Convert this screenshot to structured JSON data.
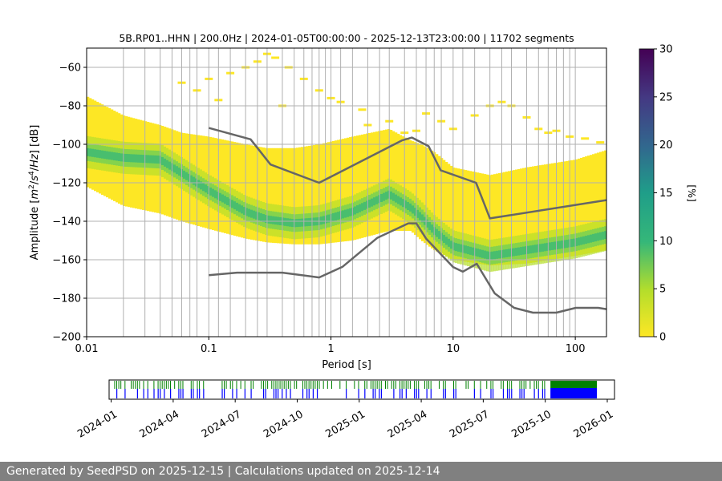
{
  "chart_data": [
    {
      "type": "heatmap",
      "title": "5B.RP01..HHN | 200.0Hz | 2024-01-05T00:00:00 - 2025-12-13T23:00:00 | 11702 segments",
      "xlabel": "Period [s]",
      "ylabel_text": "Amplitude [m²/s⁴/Hz] [dB]",
      "x_scale": "log",
      "xlim": [
        0.01,
        180
      ],
      "ylim": [
        -200,
        -50
      ],
      "x_ticks": [
        {
          "value": 0.01,
          "label": "0.01"
        },
        {
          "value": 0.1,
          "label": "0.1"
        },
        {
          "value": 1,
          "label": "1"
        },
        {
          "value": 10,
          "label": "10"
        },
        {
          "value": 100,
          "label": "100"
        }
      ],
      "y_ticks": [
        -60,
        -80,
        -100,
        -120,
        -140,
        -160,
        -180,
        -200
      ],
      "y_tick_labels": [
        "−60",
        "−80",
        "−100",
        "−120",
        "−140",
        "−160",
        "−180",
        "−200"
      ],
      "grid": "vertical lines at period bins",
      "grid_periods": [
        0.02,
        0.03,
        0.04,
        0.05,
        0.06,
        0.07,
        0.08,
        0.1,
        0.12,
        0.15,
        0.2,
        0.25,
        0.3,
        0.4,
        0.5,
        0.6,
        0.7,
        0.8,
        0.9,
        1,
        1.2,
        1.5,
        2,
        2.5,
        3,
        4,
        5,
        6,
        7,
        8,
        10,
        12,
        15,
        20,
        25,
        30,
        40,
        50,
        60,
        70,
        80,
        90,
        100
      ],
      "density_band": {
        "period": [
          0.01,
          0.02,
          0.04,
          0.06,
          0.1,
          0.2,
          0.3,
          0.5,
          0.8,
          1.5,
          3,
          4.5,
          5.5,
          7,
          10,
          20,
          40,
          100,
          180
        ],
        "mode_db": [
          -104,
          -107,
          -108,
          -115,
          -124,
          -135,
          -139,
          -141,
          -140,
          -135,
          -126,
          -133,
          -138,
          -145,
          -153,
          -158,
          -155,
          -151,
          -147
        ],
        "top_db": [
          -75,
          -85,
          -90,
          -94,
          -96,
          -100,
          -102,
          -102,
          -100,
          -96,
          -92,
          -98,
          -100,
          -104,
          -112,
          -116,
          -112,
          -108,
          -103
        ],
        "bottom_db": [
          -122,
          -132,
          -136,
          -140,
          -144,
          -149,
          -151,
          -152,
          -152,
          -150,
          -145,
          -145,
          -150,
          -155,
          -160,
          -163,
          -162,
          -158,
          -155
        ]
      },
      "sparse_points": [
        [
          0.06,
          -68
        ],
        [
          0.08,
          -72
        ],
        [
          0.1,
          -66
        ],
        [
          0.15,
          -63
        ],
        [
          0.2,
          -60
        ],
        [
          0.25,
          -57
        ],
        [
          0.3,
          -53
        ],
        [
          0.35,
          -55
        ],
        [
          0.45,
          -60
        ],
        [
          0.6,
          -66
        ],
        [
          0.8,
          -72
        ],
        [
          1.2,
          -78
        ],
        [
          1.8,
          -82
        ],
        [
          3,
          -88
        ],
        [
          0.12,
          -77
        ],
        [
          0.4,
          -80
        ],
        [
          1,
          -76
        ],
        [
          2,
          -90
        ],
        [
          6,
          -84
        ],
        [
          8,
          -88
        ],
        [
          10,
          -92
        ],
        [
          15,
          -85
        ],
        [
          20,
          -80
        ],
        [
          25,
          -78
        ],
        [
          30,
          -80
        ],
        [
          40,
          -86
        ],
        [
          50,
          -92
        ],
        [
          60,
          -94
        ],
        [
          70,
          -93
        ],
        [
          90,
          -96
        ],
        [
          120,
          -97
        ],
        [
          160,
          -99
        ],
        [
          5,
          -93
        ],
        [
          4,
          -94
        ]
      ],
      "noise_models": {
        "high": {
          "period": [
            0.1,
            0.22,
            0.32,
            0.8,
            3.8,
            4.6,
            6.3,
            7.9,
            15.4,
            20,
            180
          ],
          "db": [
            -91.5,
            -97.4,
            -110.5,
            -120,
            -98,
            -96.5,
            -101,
            -113.5,
            -120,
            -138.5,
            -129
          ]
        },
        "low": {
          "period": [
            0.1,
            0.17,
            0.4,
            0.8,
            1.24,
            2.4,
            4.3,
            5,
            6,
            10,
            12,
            15.6,
            21.9,
            31.6,
            45,
            70,
            101,
            154,
            180
          ],
          "db": [
            -168,
            -166.7,
            -166.7,
            -169.2,
            -163.7,
            -148.6,
            -141.1,
            -141.1,
            -149,
            -163.8,
            -166.2,
            -162.1,
            -177.5,
            -185,
            -187.5,
            -187.5,
            -185,
            -185,
            -185.7
          ]
        }
      },
      "colorbar": {
        "label": "[%]",
        "range": [
          0,
          30
        ],
        "ticks": [
          "0",
          "5",
          "10",
          "15",
          "20",
          "25",
          "30"
        ],
        "colormap": "viridis_r"
      }
    },
    {
      "type": "timeline",
      "x_tick_labels": [
        "2024-01",
        "2024-04",
        "2024-07",
        "2024-10",
        "2025-01",
        "2025-04",
        "2025-07",
        "2025-10",
        "2026-01"
      ],
      "range": [
        "2024-01",
        "2026-01"
      ],
      "coverage_dense": [
        "2025-10",
        "2025-12"
      ],
      "colors": {
        "available": "#0000ff",
        "gap_marker": "#008000"
      }
    }
  ],
  "colors": {
    "noise_model": "#666666",
    "grid": "#b0b0b0",
    "footer_bg": "#808080",
    "footer_text": "#ffffff"
  },
  "footer": {
    "text": "Generated by SeedPSD on 2025-12-15 | Calculations updated on 2025-12-14"
  }
}
